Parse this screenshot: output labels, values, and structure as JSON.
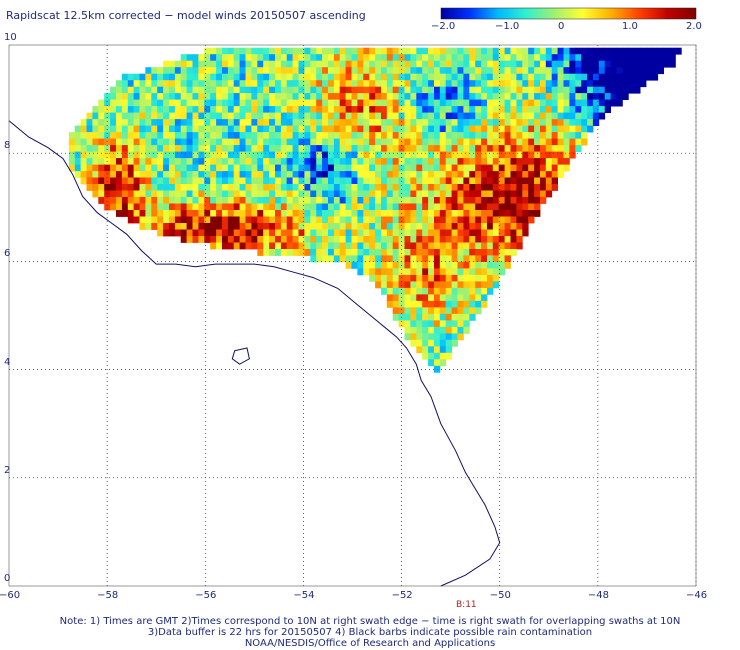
{
  "title": "Rapidscat 12.5km corrected − model winds 20150507 ascending",
  "colorbar": {
    "ticks": [
      "−2.0",
      "−1.0",
      "0",
      "1.0",
      "2.0"
    ],
    "min": -2.0,
    "max": 2.0,
    "colors": [
      "#0000a0",
      "#0030ff",
      "#00b8ff",
      "#30f0d0",
      "#a0f070",
      "#ffff30",
      "#ffb000",
      "#ff4000",
      "#c00000",
      "#800000"
    ]
  },
  "map": {
    "lon_range": [
      -60,
      -46
    ],
    "lat_range": [
      0,
      10
    ],
    "lon_labels": [
      "−60",
      "−58",
      "−56",
      "−54",
      "−52",
      "−50",
      "−48",
      "−46"
    ],
    "lat_labels": [
      "10",
      "8",
      "6",
      "4",
      "2",
      "0"
    ],
    "pass_label": "B:11",
    "coastline_color": "#101060",
    "grid": "dotted"
  },
  "notes": {
    "line1": "Note: 1) Times are GMT 2)Times correspond to 10N at right swath edge − time is right swath for overlapping swaths at 10N",
    "line2": "3)Data buffer is 22 hrs for 20150507 4) Black barbs indicate possible rain contamination",
    "line3": "NOAA/NESDIS/Office of Research and Applications"
  }
}
